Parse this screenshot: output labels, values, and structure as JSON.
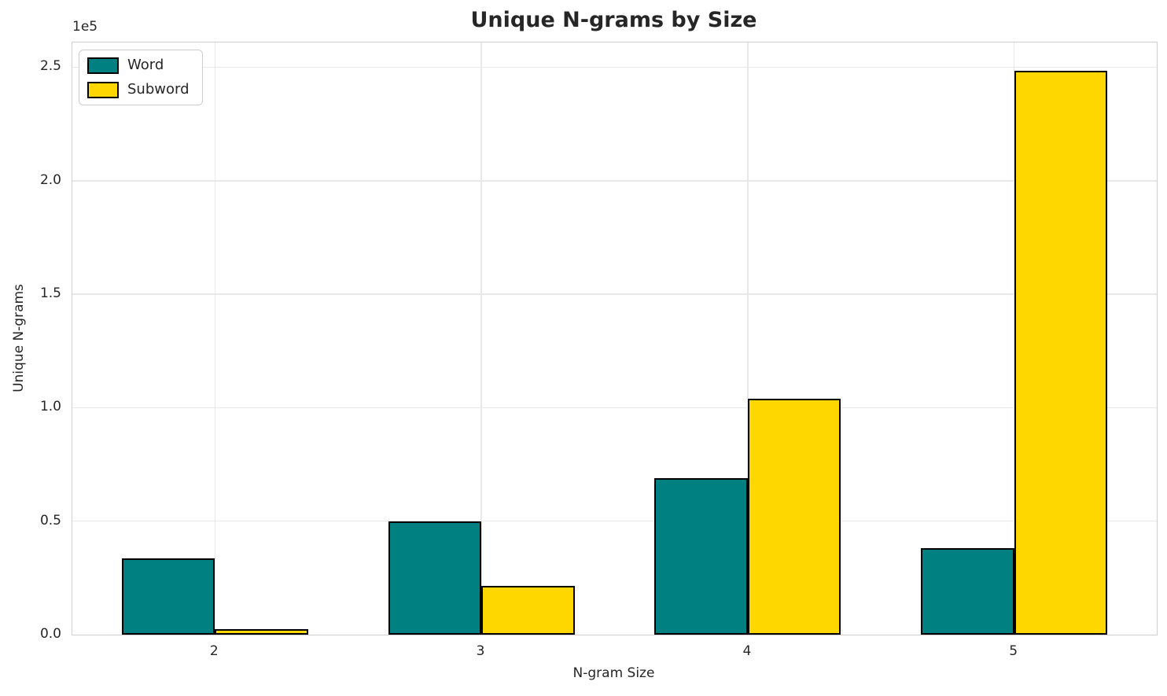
{
  "figure": {
    "title": "Unique N-grams by Size",
    "y_offset_text": "1e5"
  },
  "chart_data": {
    "type": "bar",
    "title": "Unique N-grams by Size",
    "xlabel": "N-gram Size",
    "ylabel": "Unique N-grams",
    "offset_text": "1e5",
    "categories": [
      "2",
      "3",
      "4",
      "5"
    ],
    "category_values": [
      2,
      3,
      4,
      5
    ],
    "series": [
      {
        "name": "Word",
        "color": "#008080",
        "values": [
          33500,
          50000,
          69000,
          38000
        ]
      },
      {
        "name": "Subword",
        "color": "#ffd700",
        "values": [
          2500,
          21500,
          104000,
          248500
        ]
      }
    ],
    "bar_edge_color": "#000000",
    "bar_width_data_units": 0.35,
    "xlim": [
      1.465,
      5.535
    ],
    "ylim": [
      0,
      260900
    ],
    "yticks": [
      0,
      50000,
      100000,
      150000,
      200000,
      250000
    ],
    "ytick_labels": [
      "0.0",
      "0.5",
      "1.0",
      "1.5",
      "2.0",
      "2.5"
    ],
    "grid": true,
    "grid_color": "#e8e8e8",
    "spine_color": "#cfcfcf",
    "text_color": "#262626",
    "legend_position": "upper left",
    "legend_entries": [
      "Word",
      "Subword"
    ]
  }
}
